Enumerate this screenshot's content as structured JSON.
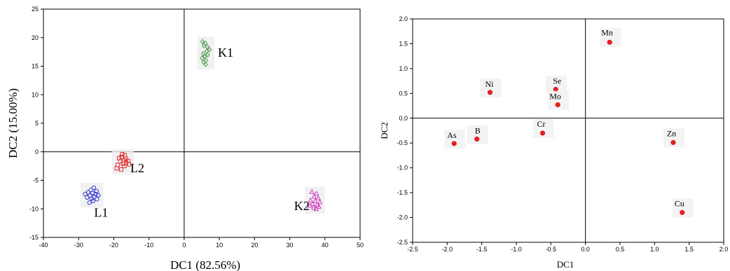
{
  "chart_data": [
    {
      "type": "scatter",
      "xlabel": "DC1 (82.56%)",
      "ylabel": "DC2 (15.00%)",
      "xlim": [
        -40,
        50
      ],
      "ylim": [
        -15,
        25
      ],
      "xticks": [
        -40,
        -30,
        -20,
        -10,
        0,
        10,
        20,
        30,
        40,
        50
      ],
      "yticks": [
        -15,
        -10,
        -5,
        0,
        5,
        10,
        15,
        20,
        25
      ],
      "grid": false,
      "reference_lines": {
        "x": 0,
        "y": 0
      },
      "series": [
        {
          "name": "K1",
          "marker": "diamond",
          "color": "#4a9a4a",
          "points": [
            [
              5.2,
              19.3
            ],
            [
              6.0,
              19.0
            ],
            [
              5.6,
              18.6
            ],
            [
              6.6,
              18.4
            ],
            [
              7.2,
              17.9
            ],
            [
              6.4,
              17.6
            ],
            [
              5.4,
              17.2
            ],
            [
              6.7,
              17.0
            ],
            [
              5.9,
              16.7
            ],
            [
              5.1,
              16.4
            ],
            [
              6.2,
              16.0
            ],
            [
              5.5,
              15.7
            ],
            [
              6.1,
              15.3
            ]
          ]
        },
        {
          "name": "L2",
          "marker": "square",
          "color": "#e03030",
          "points": [
            [
              -17.6,
              -0.4
            ],
            [
              -16.9,
              -0.6
            ],
            [
              -17.8,
              -0.9
            ],
            [
              -18.5,
              -1.1
            ],
            [
              -16.6,
              -1.2
            ],
            [
              -17.1,
              -1.5
            ],
            [
              -18.2,
              -1.7
            ],
            [
              -15.9,
              -1.6
            ],
            [
              -16.5,
              -1.9
            ],
            [
              -17.4,
              -2.1
            ],
            [
              -15.7,
              -2.2
            ],
            [
              -18.9,
              -2.3
            ],
            [
              -17.0,
              -2.5
            ],
            [
              -19.2,
              -2.9
            ],
            [
              -17.9,
              -3.1
            ]
          ]
        },
        {
          "name": "L1",
          "marker": "circle",
          "color": "#3a3ad0",
          "points": [
            [
              -25.7,
              -6.3
            ],
            [
              -26.5,
              -6.7
            ],
            [
              -24.9,
              -6.9
            ],
            [
              -27.3,
              -7.1
            ],
            [
              -26.0,
              -7.2
            ],
            [
              -25.2,
              -7.4
            ],
            [
              -28.1,
              -7.4
            ],
            [
              -24.4,
              -7.6
            ],
            [
              -26.8,
              -7.7
            ],
            [
              -25.6,
              -7.9
            ],
            [
              -27.6,
              -8.0
            ],
            [
              -26.3,
              -8.2
            ],
            [
              -24.8,
              -8.3
            ],
            [
              -25.9,
              -8.6
            ],
            [
              -26.9,
              -8.9
            ]
          ]
        },
        {
          "name": "K2",
          "marker": "triangle",
          "color": "#d040c0",
          "points": [
            [
              36.3,
              -7.0
            ],
            [
              37.6,
              -7.3
            ],
            [
              36.9,
              -7.8
            ],
            [
              38.1,
              -8.1
            ],
            [
              35.9,
              -8.5
            ],
            [
              37.2,
              -8.6
            ],
            [
              38.6,
              -8.8
            ],
            [
              36.5,
              -9.1
            ],
            [
              37.8,
              -9.3
            ],
            [
              35.7,
              -9.4
            ],
            [
              38.3,
              -9.6
            ],
            [
              36.8,
              -9.8
            ],
            [
              37.5,
              -10.0
            ]
          ]
        }
      ]
    },
    {
      "type": "scatter",
      "xlabel": "DC1",
      "ylabel": "DC2",
      "xlim": [
        -2.5,
        2.0
      ],
      "ylim": [
        -2.5,
        2.0
      ],
      "xticks": [
        "-2.5",
        "-2.0",
        "-1.5",
        "-1.0",
        "-0.5",
        "0.0",
        "0.5",
        "1.0",
        "1.5",
        "2.0"
      ],
      "yticks": [
        "-2.5",
        "-2.0",
        "-1.5",
        "-1.0",
        "-0.5",
        "0.0",
        "0.5",
        "1.0",
        "1.5",
        "2.0"
      ],
      "grid": false,
      "reference_lines": {
        "x": 0,
        "y": 0
      },
      "marker_color": "#e02020",
      "points": [
        {
          "label": "Mn",
          "x": 0.35,
          "y": 1.53
        },
        {
          "label": "Ni",
          "x": -1.38,
          "y": 0.52
        },
        {
          "label": "Se",
          "x": -0.43,
          "y": 0.58
        },
        {
          "label": "Mo",
          "x": -0.4,
          "y": 0.27
        },
        {
          "label": "Cr",
          "x": -0.62,
          "y": -0.3
        },
        {
          "label": "As",
          "x": -1.9,
          "y": -0.51
        },
        {
          "label": "B",
          "x": -1.57,
          "y": -0.42
        },
        {
          "label": "Zn",
          "x": 1.27,
          "y": -0.49
        },
        {
          "label": "Cu",
          "x": 1.4,
          "y": -1.9
        }
      ]
    }
  ]
}
